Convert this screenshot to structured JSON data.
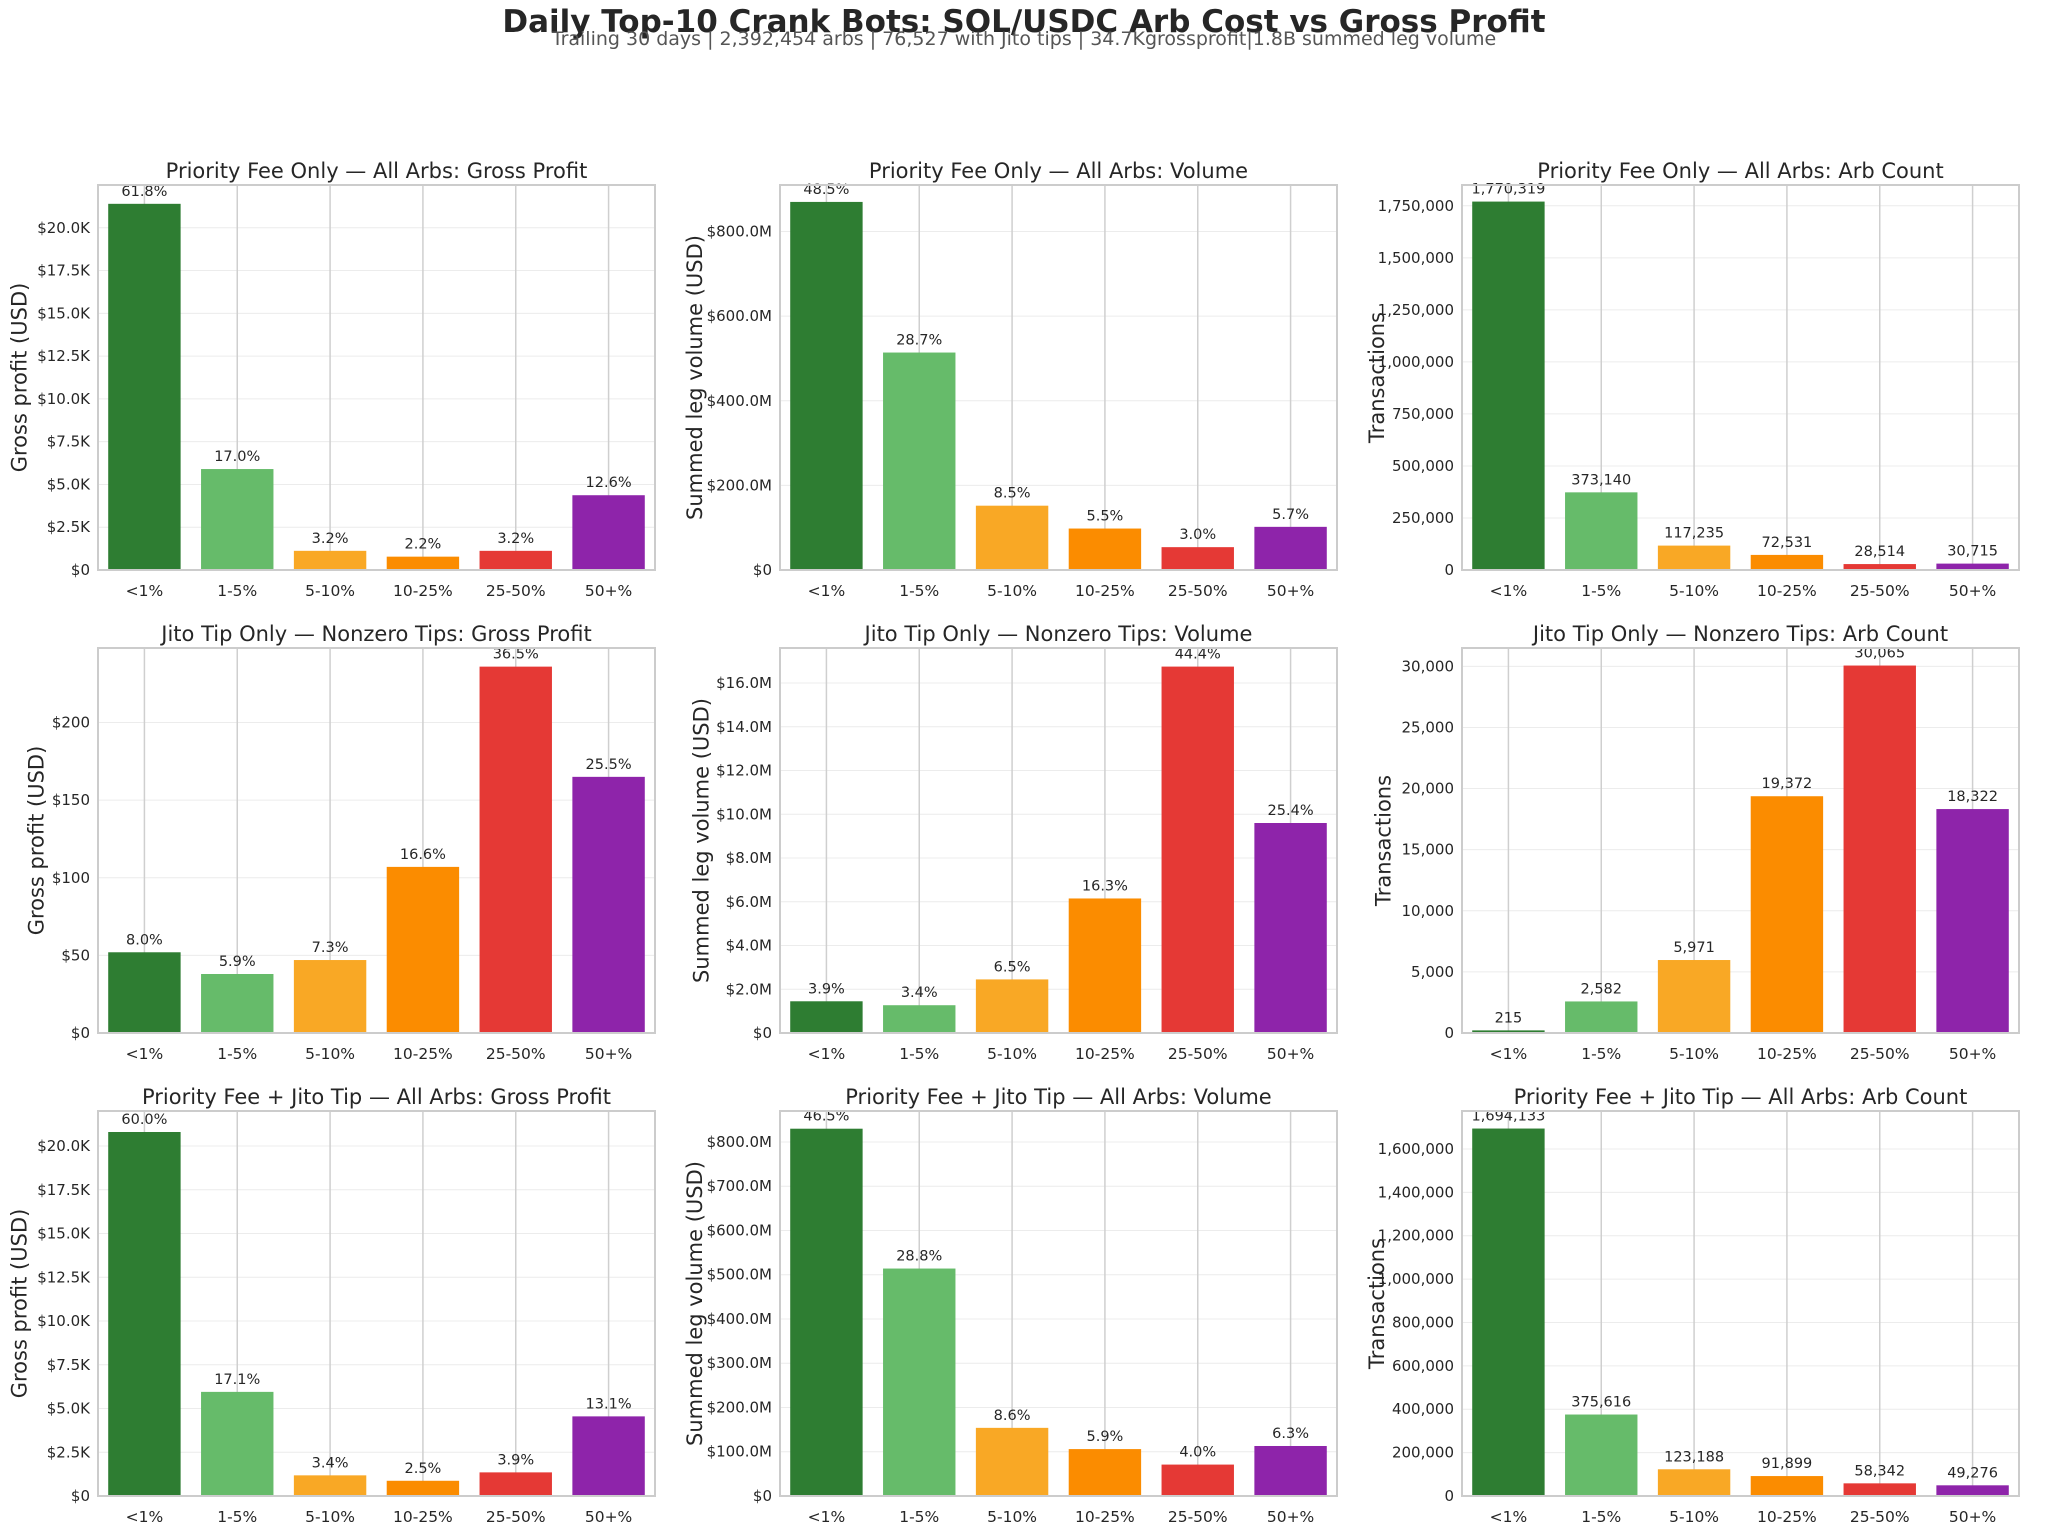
{
  "title": "Daily Top-10 Crank Bots: SOL/USDC Arb Cost vs Gross Profit",
  "subtitle": "Trailing 30 days | 2,392,454 arbs | 76,527 with Jito tips | 34.7Kgrossprofit|1.8B summed leg volume",
  "colors": [
    "#2e7d32",
    "#66bb6a",
    "#f9a825",
    "#fb8c00",
    "#e53935",
    "#8e24aa"
  ],
  "chart_data": [
    {
      "type": "bar",
      "title": "Priority Fee Only — All Arbs: Gross Profit",
      "ylabel": "Gross profit (USD)",
      "categories": [
        "<1%",
        "1-5%",
        "5-10%",
        "10-25%",
        "25-50%",
        "50+%"
      ],
      "values": [
        21400,
        5900,
        1120,
        780,
        1120,
        4370
      ],
      "labels": [
        "61.8%",
        "17.0%",
        "3.2%",
        "2.2%",
        "3.2%",
        "12.6%"
      ],
      "ylim": [
        0,
        22500
      ],
      "ticks": [
        0,
        2500,
        5000,
        7500,
        10000,
        12500,
        15000,
        17500,
        20000
      ],
      "tick_labels": [
        "$0",
        "$2.5K",
        "$5.0K",
        "$7.5K",
        "$10.0K",
        "$12.5K",
        "$15.0K",
        "$17.5K",
        "$20.0K"
      ]
    },
    {
      "type": "bar",
      "title": "Priority Fee Only — All Arbs: Volume",
      "ylabel": "Summed leg volume (USD)",
      "categories": [
        "<1%",
        "1-5%",
        "5-10%",
        "10-25%",
        "25-50%",
        "50+%"
      ],
      "values": [
        870000000,
        514000000,
        152000000,
        98000000,
        54000000,
        102000000
      ],
      "labels": [
        "48.5%",
        "28.7%",
        "8.5%",
        "5.5%",
        "3.0%",
        "5.7%"
      ],
      "ylim": [
        0,
        910000000
      ],
      "ticks": [
        0,
        200000000,
        400000000,
        600000000,
        800000000
      ],
      "tick_labels": [
        "$0",
        "$200.0M",
        "$400.0M",
        "$600.0M",
        "$800.0M"
      ]
    },
    {
      "type": "bar",
      "title": "Priority Fee Only — All Arbs: Arb Count",
      "ylabel": "Transactions",
      "categories": [
        "<1%",
        "1-5%",
        "5-10%",
        "10-25%",
        "25-50%",
        "50+%"
      ],
      "values": [
        1770319,
        373140,
        117235,
        72531,
        28514,
        30715
      ],
      "labels": [
        "1,770,319",
        "373,140",
        "117,235",
        "72,531",
        "28,514",
        "30,715"
      ],
      "ylim": [
        0,
        1850000
      ],
      "ticks": [
        0,
        250000,
        500000,
        750000,
        1000000,
        1250000,
        1500000,
        1750000
      ],
      "tick_labels": [
        "0",
        "250,000",
        "500,000",
        "750,000",
        "1,000,000",
        "1,250,000",
        "1,500,000",
        "1,750,000"
      ]
    },
    {
      "type": "bar",
      "title": "Jito Tip Only — Nonzero Tips: Gross Profit",
      "ylabel": "Gross profit (USD)",
      "categories": [
        "<1%",
        "1-5%",
        "5-10%",
        "10-25%",
        "25-50%",
        "50+%"
      ],
      "values": [
        52,
        38,
        47,
        107,
        236,
        165
      ],
      "labels": [
        "8.0%",
        "5.9%",
        "7.3%",
        "16.6%",
        "36.5%",
        "25.5%"
      ],
      "ylim": [
        0,
        248
      ],
      "ticks": [
        0,
        50,
        100,
        150,
        200
      ],
      "tick_labels": [
        "$0",
        "$50",
        "$100",
        "$150",
        "$200"
      ]
    },
    {
      "type": "bar",
      "title": "Jito Tip Only — Nonzero Tips: Volume",
      "ylabel": "Summed leg volume (USD)",
      "categories": [
        "<1%",
        "1-5%",
        "5-10%",
        "10-25%",
        "25-50%",
        "50+%"
      ],
      "values": [
        1450000,
        1270000,
        2450000,
        6150000,
        16750000,
        9600000
      ],
      "labels": [
        "3.9%",
        "3.4%",
        "6.5%",
        "16.3%",
        "44.4%",
        "25.4%"
      ],
      "ylim": [
        0,
        17600000
      ],
      "ticks": [
        0,
        2000000,
        4000000,
        6000000,
        8000000,
        10000000,
        12000000,
        14000000,
        16000000
      ],
      "tick_labels": [
        "$0",
        "$2.0M",
        "$4.0M",
        "$6.0M",
        "$8.0M",
        "$10.0M",
        "$12.0M",
        "$14.0M",
        "$16.0M"
      ]
    },
    {
      "type": "bar",
      "title": "Jito Tip Only — Nonzero Tips: Arb Count",
      "ylabel": "Transactions",
      "categories": [
        "<1%",
        "1-5%",
        "5-10%",
        "10-25%",
        "25-50%",
        "50+%"
      ],
      "values": [
        215,
        2582,
        5971,
        19372,
        30065,
        18322
      ],
      "labels": [
        "215",
        "2,582",
        "5,971",
        "19,372",
        "30,065",
        "18,322"
      ],
      "ylim": [
        0,
        31500
      ],
      "ticks": [
        0,
        5000,
        10000,
        15000,
        20000,
        25000,
        30000
      ],
      "tick_labels": [
        "0",
        "5,000",
        "10,000",
        "15,000",
        "20,000",
        "25,000",
        "30,000"
      ]
    },
    {
      "type": "bar",
      "title": "Priority Fee + Jito Tip — All Arbs: Gross Profit",
      "ylabel": "Gross profit (USD)",
      "categories": [
        "<1%",
        "1-5%",
        "5-10%",
        "10-25%",
        "25-50%",
        "50+%"
      ],
      "values": [
        20800,
        5950,
        1180,
        870,
        1350,
        4550
      ],
      "labels": [
        "60.0%",
        "17.1%",
        "3.4%",
        "2.5%",
        "3.9%",
        "13.1%"
      ],
      "ylim": [
        0,
        22000
      ],
      "ticks": [
        0,
        2500,
        5000,
        7500,
        10000,
        12500,
        15000,
        17500,
        20000
      ],
      "tick_labels": [
        "$0",
        "$2.5K",
        "$5.0K",
        "$7.5K",
        "$10.0K",
        "$12.5K",
        "$15.0K",
        "$17.5K",
        "$20.0K"
      ]
    },
    {
      "type": "bar",
      "title": "Priority Fee + Jito Tip — All Arbs: Volume",
      "ylabel": "Summed leg volume (USD)",
      "categories": [
        "<1%",
        "1-5%",
        "5-10%",
        "10-25%",
        "25-50%",
        "50+%"
      ],
      "values": [
        830000000,
        514000000,
        154000000,
        106000000,
        71000000,
        113000000
      ],
      "labels": [
        "46.5%",
        "28.8%",
        "8.6%",
        "5.9%",
        "4.0%",
        "6.3%"
      ],
      "ylim": [
        0,
        870000000
      ],
      "ticks": [
        0,
        100000000,
        200000000,
        300000000,
        400000000,
        500000000,
        600000000,
        700000000,
        800000000
      ],
      "tick_labels": [
        "$0",
        "$100.0M",
        "$200.0M",
        "$300.0M",
        "$400.0M",
        "$500.0M",
        "$600.0M",
        "$700.0M",
        "$800.0M"
      ]
    },
    {
      "type": "bar",
      "title": "Priority Fee + Jito Tip — All Arbs: Arb Count",
      "ylabel": "Transactions",
      "categories": [
        "<1%",
        "1-5%",
        "5-10%",
        "10-25%",
        "25-50%",
        "50+%"
      ],
      "values": [
        1694133,
        375616,
        123188,
        91899,
        58342,
        49276
      ],
      "labels": [
        "1,694,133",
        "375,616",
        "123,188",
        "91,899",
        "58,342",
        "49,276"
      ],
      "ylim": [
        0,
        1775000
      ],
      "ticks": [
        0,
        200000,
        400000,
        600000,
        800000,
        1000000,
        1200000,
        1400000,
        1600000
      ],
      "tick_labels": [
        "0",
        "200,000",
        "400,000",
        "600,000",
        "800,000",
        "1,000,000",
        "1,200,000",
        "1,400,000",
        "1,600,000"
      ]
    }
  ]
}
